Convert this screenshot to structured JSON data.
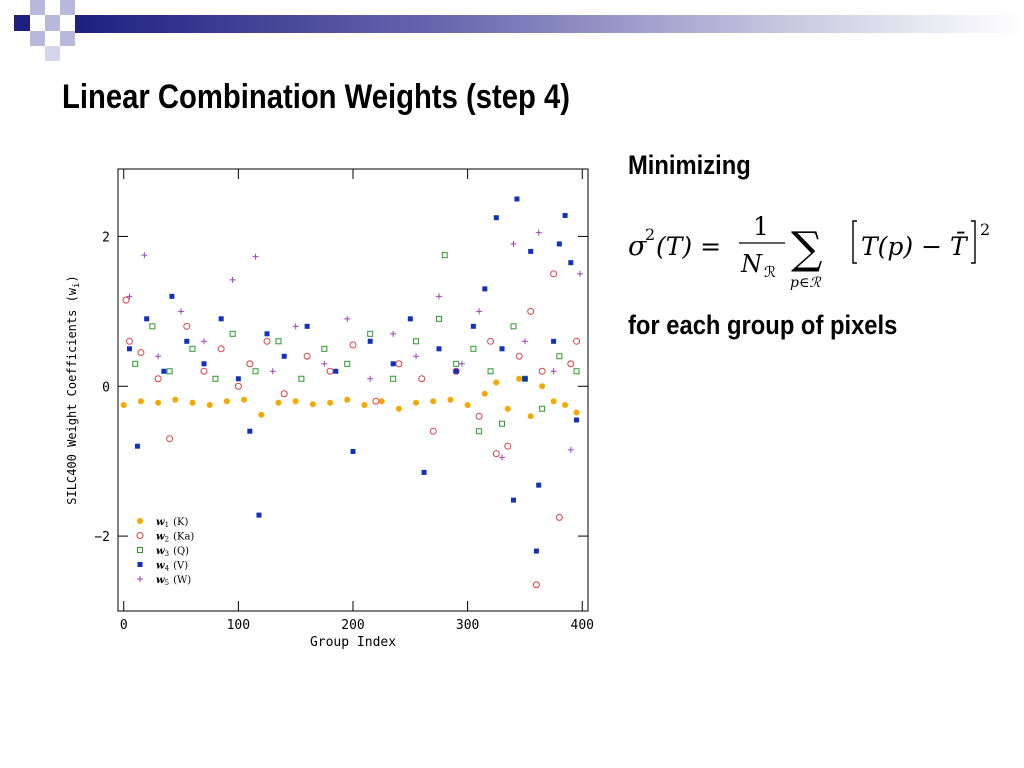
{
  "slide": {
    "title": "Linear Combination Weights (step 4)",
    "text_minimizing": "Minimizing",
    "text_for_each": "for each group of pixels",
    "formula": {
      "sigma": "σ",
      "power": "2",
      "arg": "(T) =",
      "numerator": "1",
      "N": "N",
      "N_sub": "ℛ",
      "sum": "∑",
      "sum_sub": "p∈ℛ",
      "bracket_body": "T(p) − T̄",
      "outer_power": "2"
    },
    "colors": {
      "accent": "#1f1f80",
      "deco_light": "#b8b8dc"
    }
  },
  "chart_data": {
    "type": "scatter",
    "xlabel": "Group Index",
    "ylabel": "SILC400 Weight Coefficients (w",
    "ylabel_sub": "i",
    "ylabel_close": ")",
    "xlim": [
      -5,
      405
    ],
    "ylim": [
      -3.0,
      2.9
    ],
    "xticks": [
      0,
      100,
      200,
      300,
      400
    ],
    "xtick_labels": [
      "0",
      "100",
      "200",
      "300",
      "400"
    ],
    "yticks": [
      -2,
      0,
      2
    ],
    "ytick_labels": [
      "−2",
      "0",
      "2"
    ],
    "legend_position": "bottom-left",
    "series": [
      {
        "name": "w",
        "sub": "1",
        "band": "(K)",
        "color": "#f5a800",
        "marker": "filled-circle",
        "points": [
          [
            0,
            -0.25
          ],
          [
            15,
            -0.2
          ],
          [
            30,
            -0.22
          ],
          [
            45,
            -0.18
          ],
          [
            60,
            -0.22
          ],
          [
            75,
            -0.25
          ],
          [
            90,
            -0.2
          ],
          [
            105,
            -0.18
          ],
          [
            120,
            -0.38
          ],
          [
            135,
            -0.22
          ],
          [
            150,
            -0.2
          ],
          [
            165,
            -0.24
          ],
          [
            180,
            -0.22
          ],
          [
            195,
            -0.18
          ],
          [
            210,
            -0.25
          ],
          [
            225,
            -0.2
          ],
          [
            240,
            -0.3
          ],
          [
            255,
            -0.22
          ],
          [
            270,
            -0.2
          ],
          [
            285,
            -0.18
          ],
          [
            300,
            -0.25
          ],
          [
            315,
            -0.1
          ],
          [
            325,
            0.05
          ],
          [
            335,
            -0.3
          ],
          [
            345,
            0.1
          ],
          [
            355,
            -0.4
          ],
          [
            365,
            0.0
          ],
          [
            375,
            -0.2
          ],
          [
            385,
            -0.25
          ],
          [
            395,
            -0.35
          ]
        ]
      },
      {
        "name": "w",
        "sub": "2",
        "band": "(Ka)",
        "color": "#e04040",
        "marker": "open-circle",
        "points": [
          [
            2,
            1.15
          ],
          [
            5,
            0.6
          ],
          [
            15,
            0.45
          ],
          [
            30,
            0.1
          ],
          [
            40,
            -0.7
          ],
          [
            55,
            0.8
          ],
          [
            70,
            0.2
          ],
          [
            85,
            0.5
          ],
          [
            100,
            0.0
          ],
          [
            110,
            0.3
          ],
          [
            125,
            0.6
          ],
          [
            140,
            -0.1
          ],
          [
            160,
            0.4
          ],
          [
            180,
            0.2
          ],
          [
            200,
            0.55
          ],
          [
            220,
            -0.2
          ],
          [
            240,
            0.3
          ],
          [
            260,
            0.1
          ],
          [
            270,
            -0.6
          ],
          [
            290,
            0.2
          ],
          [
            310,
            -0.4
          ],
          [
            320,
            0.6
          ],
          [
            325,
            -0.9
          ],
          [
            335,
            -0.8
          ],
          [
            345,
            0.4
          ],
          [
            355,
            1.0
          ],
          [
            360,
            -2.65
          ],
          [
            365,
            0.2
          ],
          [
            375,
            1.5
          ],
          [
            380,
            -1.75
          ],
          [
            390,
            0.3
          ],
          [
            395,
            0.6
          ]
        ]
      },
      {
        "name": "w",
        "sub": "3",
        "band": "(Q)",
        "color": "#2a9a2a",
        "marker": "open-square",
        "points": [
          [
            10,
            0.3
          ],
          [
            25,
            0.8
          ],
          [
            40,
            0.2
          ],
          [
            60,
            0.5
          ],
          [
            80,
            0.1
          ],
          [
            95,
            0.7
          ],
          [
            115,
            0.2
          ],
          [
            135,
            0.6
          ],
          [
            155,
            0.1
          ],
          [
            175,
            0.5
          ],
          [
            195,
            0.3
          ],
          [
            215,
            0.7
          ],
          [
            235,
            0.1
          ],
          [
            255,
            0.6
          ],
          [
            275,
            0.9
          ],
          [
            280,
            1.75
          ],
          [
            290,
            0.3
          ],
          [
            305,
            0.5
          ],
          [
            310,
            -0.6
          ],
          [
            320,
            0.2
          ],
          [
            330,
            -0.5
          ],
          [
            340,
            0.8
          ],
          [
            350,
            0.1
          ],
          [
            365,
            -0.3
          ],
          [
            380,
            0.4
          ],
          [
            395,
            0.2
          ]
        ]
      },
      {
        "name": "w",
        "sub": "4",
        "band": "(V)",
        "color": "#1030c0",
        "marker": "filled-square",
        "points": [
          [
            5,
            0.5
          ],
          [
            12,
            -0.8
          ],
          [
            20,
            0.9
          ],
          [
            35,
            0.2
          ],
          [
            42,
            1.2
          ],
          [
            55,
            0.6
          ],
          [
            70,
            0.3
          ],
          [
            85,
            0.9
          ],
          [
            100,
            0.1
          ],
          [
            110,
            -0.6
          ],
          [
            118,
            -1.72
          ],
          [
            125,
            0.7
          ],
          [
            140,
            0.4
          ],
          [
            160,
            0.8
          ],
          [
            185,
            0.2
          ],
          [
            200,
            -0.87
          ],
          [
            215,
            0.6
          ],
          [
            235,
            0.3
          ],
          [
            250,
            0.9
          ],
          [
            262,
            -1.15
          ],
          [
            275,
            0.5
          ],
          [
            290,
            0.2
          ],
          [
            305,
            0.8
          ],
          [
            315,
            1.3
          ],
          [
            325,
            2.25
          ],
          [
            330,
            0.5
          ],
          [
            340,
            -1.52
          ],
          [
            343,
            2.5
          ],
          [
            350,
            0.1
          ],
          [
            355,
            1.8
          ],
          [
            360,
            -2.2
          ],
          [
            362,
            -1.32
          ],
          [
            375,
            0.6
          ],
          [
            380,
            1.9
          ],
          [
            385,
            2.28
          ],
          [
            390,
            1.65
          ],
          [
            395,
            -0.45
          ]
        ]
      },
      {
        "name": "w",
        "sub": "5",
        "band": "(W)",
        "color": "#a040c0",
        "marker": "plus",
        "points": [
          [
            5,
            1.2
          ],
          [
            18,
            1.75
          ],
          [
            30,
            0.4
          ],
          [
            50,
            1.0
          ],
          [
            70,
            0.6
          ],
          [
            95,
            1.42
          ],
          [
            115,
            1.73
          ],
          [
            130,
            0.2
          ],
          [
            150,
            0.8
          ],
          [
            175,
            0.3
          ],
          [
            195,
            0.9
          ],
          [
            215,
            0.1
          ],
          [
            235,
            0.7
          ],
          [
            255,
            0.4
          ],
          [
            275,
            1.2
          ],
          [
            295,
            0.3
          ],
          [
            310,
            1.0
          ],
          [
            330,
            -0.95
          ],
          [
            340,
            1.9
          ],
          [
            350,
            0.6
          ],
          [
            362,
            2.05
          ],
          [
            375,
            0.2
          ],
          [
            390,
            -0.85
          ],
          [
            398,
            1.5
          ]
        ]
      }
    ]
  }
}
